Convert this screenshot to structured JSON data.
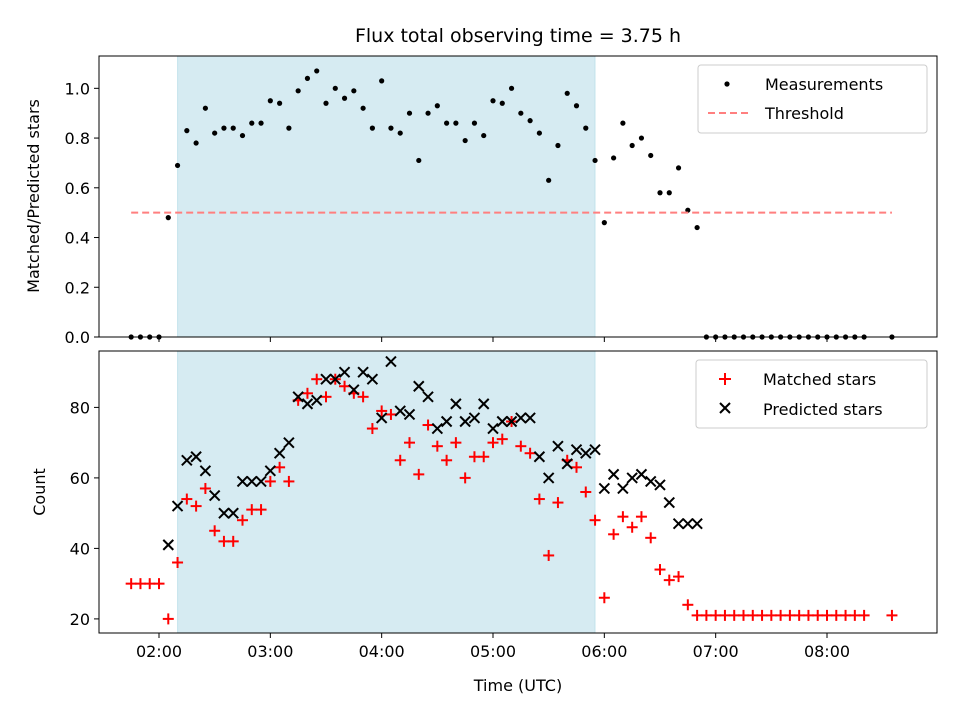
{
  "chart_data": {
    "title": "Flux total observing time = 3.75 h",
    "xlabel": "Time (UTC)",
    "x_ticks": [
      "02:00",
      "03:00",
      "04:00",
      "05:00",
      "06:00",
      "07:00",
      "08:00"
    ],
    "shaded_interval": {
      "start": "02:10",
      "end": "05:55",
      "color": "#add8e6"
    },
    "panels": [
      {
        "type": "scatter",
        "ylabel": "Matched/Predicted stars",
        "ylim": [
          0,
          1.13
        ],
        "y_ticks": [
          "0.0",
          "0.2",
          "0.4",
          "0.6",
          "0.8",
          "1.0"
        ],
        "legend": "top-right",
        "series": [
          {
            "name": "Measurements",
            "marker": "dot",
            "color": "#000000",
            "x": [
              "01:45",
              "01:50",
              "01:55",
              "02:00",
              "02:05",
              "02:10",
              "02:15",
              "02:20",
              "02:25",
              "02:30",
              "02:35",
              "02:40",
              "02:45",
              "02:50",
              "02:55",
              "03:00",
              "03:05",
              "03:10",
              "03:15",
              "03:20",
              "03:25",
              "03:30",
              "03:35",
              "03:40",
              "03:45",
              "03:50",
              "03:55",
              "04:00",
              "04:05",
              "04:10",
              "04:15",
              "04:20",
              "04:25",
              "04:30",
              "04:35",
              "04:40",
              "04:45",
              "04:50",
              "04:55",
              "05:00",
              "05:05",
              "05:10",
              "05:15",
              "05:20",
              "05:25",
              "05:30",
              "05:35",
              "05:40",
              "05:45",
              "05:50",
              "05:55",
              "06:00",
              "06:05",
              "06:10",
              "06:15",
              "06:20",
              "06:25",
              "06:30",
              "06:35",
              "06:40",
              "06:45",
              "06:50",
              "06:55",
              "07:00",
              "07:05",
              "07:10",
              "07:15",
              "07:20",
              "07:25",
              "07:30",
              "07:35",
              "07:40",
              "07:45",
              "07:50",
              "07:55",
              "08:00",
              "08:05",
              "08:10",
              "08:15",
              "08:20",
              "08:35"
            ],
            "y": [
              0,
              0,
              0,
              0,
              0.48,
              0.69,
              0.83,
              0.78,
              0.92,
              0.82,
              0.84,
              0.84,
              0.81,
              0.86,
              0.86,
              0.95,
              0.94,
              0.84,
              0.99,
              1.04,
              1.07,
              0.94,
              1.0,
              0.96,
              0.99,
              0.92,
              0.84,
              1.03,
              0.84,
              0.82,
              0.9,
              0.71,
              0.9,
              0.93,
              0.86,
              0.86,
              0.79,
              0.86,
              0.81,
              0.95,
              0.94,
              1.0,
              0.9,
              0.87,
              0.82,
              0.63,
              0.77,
              0.98,
              0.93,
              0.84,
              0.71,
              0.46,
              0.72,
              0.86,
              0.77,
              0.8,
              0.73,
              0.58,
              0.58,
              0.68,
              0.51,
              0.44,
              0,
              0,
              0,
              0,
              0,
              0,
              0,
              0,
              0,
              0,
              0,
              0,
              0,
              0,
              0,
              0,
              0,
              0,
              0
            ]
          },
          {
            "name": "Threshold",
            "marker": "dashed-line",
            "color": "#ff7f7f",
            "x": [
              "01:45",
              "08:35"
            ],
            "y": [
              0.5,
              0.5
            ]
          }
        ]
      },
      {
        "type": "scatter",
        "ylabel": "Count",
        "ylim": [
          16,
          96
        ],
        "y_ticks": [
          "20",
          "40",
          "60",
          "80"
        ],
        "legend": "top-right",
        "series": [
          {
            "name": "Matched stars",
            "marker": "plus",
            "color": "#ff0000",
            "x": [
              "01:45",
              "01:50",
              "01:55",
              "02:00",
              "02:05",
              "02:10",
              "02:15",
              "02:20",
              "02:25",
              "02:30",
              "02:35",
              "02:40",
              "02:45",
              "02:50",
              "02:55",
              "03:00",
              "03:05",
              "03:10",
              "03:15",
              "03:20",
              "03:25",
              "03:30",
              "03:35",
              "03:40",
              "03:45",
              "03:50",
              "03:55",
              "04:00",
              "04:05",
              "04:10",
              "04:15",
              "04:20",
              "04:25",
              "04:30",
              "04:35",
              "04:40",
              "04:45",
              "04:50",
              "04:55",
              "05:00",
              "05:05",
              "05:10",
              "05:15",
              "05:20",
              "05:25",
              "05:30",
              "05:35",
              "05:40",
              "05:45",
              "05:50",
              "05:55",
              "06:00",
              "06:05",
              "06:10",
              "06:15",
              "06:20",
              "06:25",
              "06:30",
              "06:35",
              "06:40",
              "06:45",
              "06:50",
              "06:55",
              "07:00",
              "07:05",
              "07:10",
              "07:15",
              "07:20",
              "07:25",
              "07:30",
              "07:35",
              "07:40",
              "07:45",
              "07:50",
              "07:55",
              "08:00",
              "08:05",
              "08:10",
              "08:15",
              "08:20",
              "08:35"
            ],
            "y": [
              30,
              30,
              30,
              30,
              20,
              36,
              54,
              52,
              57,
              45,
              42,
              42,
              48,
              51,
              51,
              59,
              63,
              59,
              82,
              84,
              88,
              83,
              88,
              86,
              84,
              83,
              74,
              79,
              78,
              65,
              70,
              61,
              75,
              69,
              65,
              70,
              60,
              66,
              66,
              70,
              71,
              76,
              69,
              67,
              54,
              38,
              53,
              65,
              63,
              56,
              48,
              26,
              44,
              49,
              46,
              49,
              43,
              34,
              31,
              32,
              24,
              21,
              21,
              21,
              21,
              21,
              21,
              21,
              21,
              21,
              21,
              21,
              21,
              21,
              21,
              21,
              21,
              21,
              21,
              21,
              21
            ]
          },
          {
            "name": "Predicted stars",
            "marker": "x",
            "color": "#000000",
            "x": [
              "02:05",
              "02:10",
              "02:15",
              "02:20",
              "02:25",
              "02:30",
              "02:35",
              "02:40",
              "02:45",
              "02:50",
              "02:55",
              "03:00",
              "03:05",
              "03:10",
              "03:15",
              "03:20",
              "03:25",
              "03:30",
              "03:35",
              "03:40",
              "03:45",
              "03:50",
              "03:55",
              "04:00",
              "04:05",
              "04:10",
              "04:15",
              "04:20",
              "04:25",
              "04:30",
              "04:35",
              "04:40",
              "04:45",
              "04:50",
              "04:55",
              "05:00",
              "05:05",
              "05:10",
              "05:15",
              "05:20",
              "05:25",
              "05:30",
              "05:35",
              "05:40",
              "05:45",
              "05:50",
              "05:55",
              "06:00",
              "06:05",
              "06:10",
              "06:15",
              "06:20",
              "06:25",
              "06:30",
              "06:35",
              "06:40",
              "06:45",
              "06:50"
            ],
            "y": [
              41,
              52,
              65,
              66,
              62,
              55,
              50,
              50,
              59,
              59,
              59,
              62,
              67,
              70,
              83,
              81,
              82,
              88,
              88,
              90,
              85,
              90,
              88,
              77,
              93,
              79,
              78,
              86,
              83,
              74,
              76,
              81,
              76,
              77,
              81,
              74,
              76,
              76,
              77,
              77,
              66,
              60,
              69,
              64,
              68,
              67,
              68,
              57,
              61,
              57,
              60,
              61,
              59,
              58,
              53,
              47,
              47,
              47
            ]
          }
        ]
      }
    ]
  }
}
